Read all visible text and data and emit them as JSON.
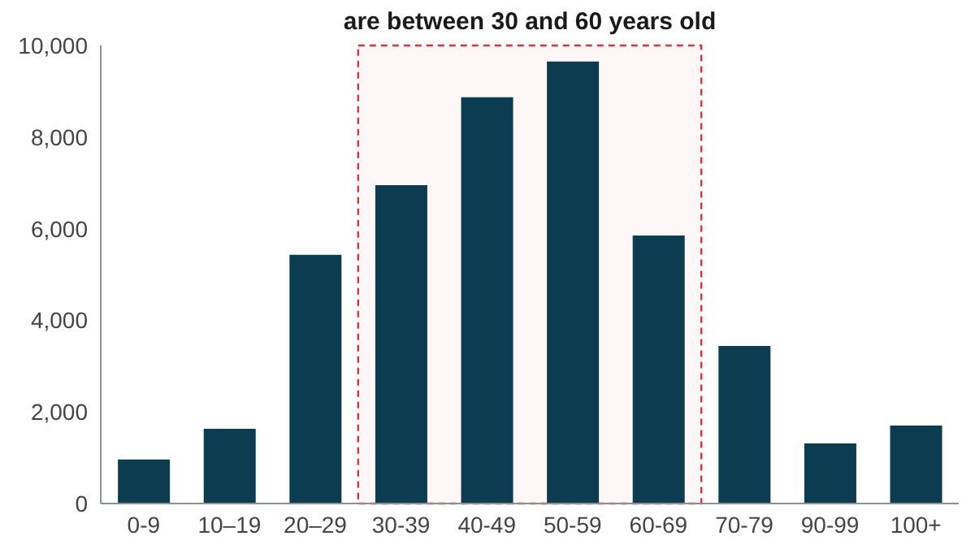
{
  "chart_data": {
    "type": "bar",
    "categories": [
      "0-9",
      "10–19",
      "20–29",
      "30-39",
      "40-49",
      "50-59",
      "60-69",
      "70-79",
      "90-99",
      "100+"
    ],
    "values": [
      960,
      1630,
      5430,
      6950,
      8870,
      9650,
      5850,
      3440,
      1310,
      1700
    ],
    "color": "#0b3c4f",
    "ylim": [
      0,
      10000
    ],
    "yticks": [
      0,
      {
        "value": 2000,
        "label": "2,000"
      },
      {
        "value": 4000,
        "label": "4,000"
      },
      {
        "value": 6000,
        "label": "6,000"
      },
      {
        "value": 8000,
        "label": "8,000"
      },
      {
        "value": 10000,
        "label": "10,000"
      }
    ],
    "grid": false,
    "legend": false,
    "bands": [
      {
        "axis": "x",
        "from": "30-39",
        "to": "60-69",
        "color": "#e0323c",
        "label": "are between 30 and 60 years old"
      }
    ]
  }
}
